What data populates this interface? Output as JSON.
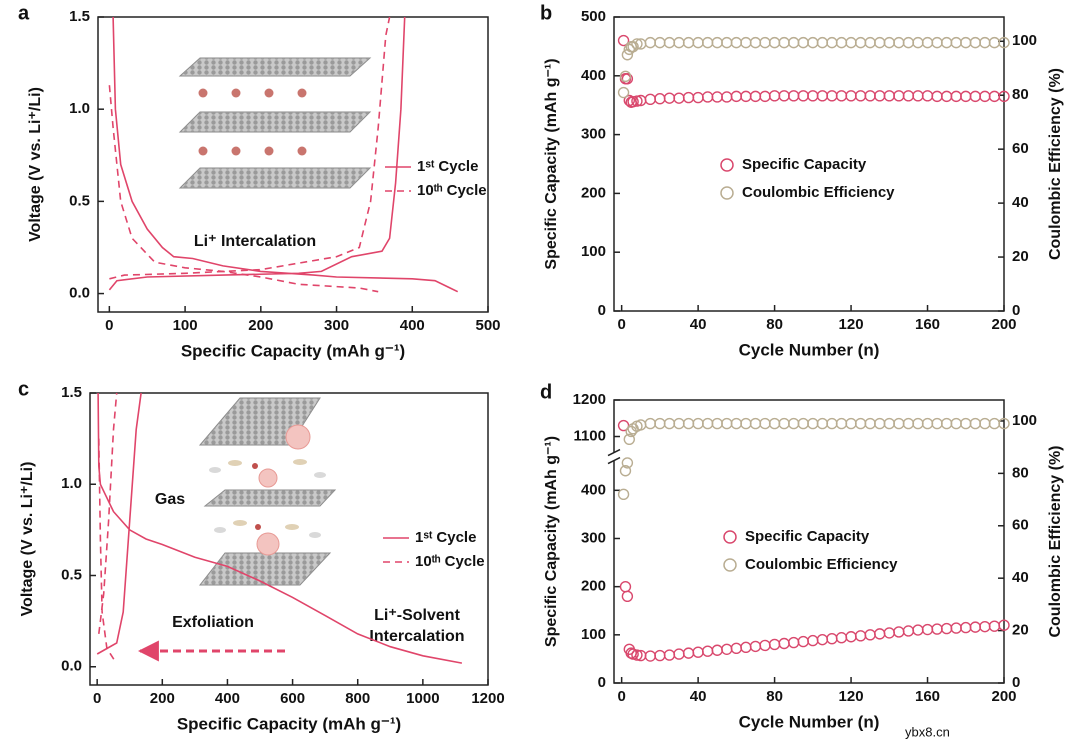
{
  "chart_data": [
    {
      "type": "line",
      "label": "a",
      "xlabel": "Specific Capacity (mAh g⁻¹)",
      "ylabel": "Voltage (V vs. Li⁺/Li)",
      "xlim": [
        -15,
        500
      ],
      "ylim": [
        -0.1,
        1.5
      ],
      "xticks": [
        0,
        100,
        200,
        300,
        400,
        500
      ],
      "yticks": [
        {
          "value": 0,
          "label": "0.0"
        },
        {
          "value": 0.5,
          "label": "0.5"
        },
        {
          "value": 1,
          "label": "1.0"
        },
        {
          "value": 1.5,
          "label": "1.5"
        }
      ],
      "annotations": [
        "Li⁺ Intercalation"
      ],
      "series": [
        {
          "name": "1ˢᵗ Cycle",
          "color": "#e0456a",
          "linestyle": "solid",
          "x": [
            5,
            8,
            15,
            30,
            50,
            70,
            85,
            110,
            150,
            200,
            270,
            300,
            400,
            430,
            450,
            460,
            null,
            0,
            10,
            50,
            150,
            250,
            280,
            320,
            360,
            370,
            378,
            385,
            390
          ],
          "values": [
            1.5,
            1.0,
            0.7,
            0.5,
            0.35,
            0.25,
            0.2,
            0.19,
            0.15,
            0.12,
            0.1,
            0.09,
            0.08,
            0.07,
            0.03,
            0.01,
            null,
            0.02,
            0.07,
            0.09,
            0.1,
            0.11,
            0.12,
            0.2,
            0.23,
            0.3,
            0.6,
            1.0,
            1.5
          ]
        },
        {
          "name": "10ᵗʰ Cycle",
          "color": "#e0456a",
          "linestyle": "dashed",
          "x": [
            0,
            5,
            15,
            30,
            60,
            100,
            150,
            200,
            250,
            330,
            355,
            null,
            0,
            20,
            100,
            200,
            300,
            330,
            345,
            355,
            365,
            370
          ],
          "values": [
            1.13,
            0.9,
            0.5,
            0.3,
            0.17,
            0.14,
            0.12,
            0.09,
            0.05,
            0.03,
            0.01,
            null,
            0.08,
            0.1,
            0.11,
            0.13,
            0.2,
            0.25,
            0.5,
            0.9,
            1.4,
            1.5
          ]
        }
      ]
    },
    {
      "type": "scatter",
      "label": "b",
      "xlabel": "Cycle Number (n)",
      "ylabel": "Specific Capacity (mAh g⁻¹)",
      "y2label": "Coulombic Efficiency (%)",
      "xlim": [
        -4,
        200
      ],
      "ylim": [
        0,
        500
      ],
      "y2lim": [
        0,
        109
      ],
      "xticks": [
        0,
        40,
        80,
        120,
        160,
        200
      ],
      "yticks": [
        0,
        100,
        200,
        300,
        400,
        500
      ],
      "y2ticks": [
        0,
        20,
        40,
        60,
        80,
        100
      ],
      "x": [
        1,
        2,
        3,
        4,
        5,
        6,
        8,
        10,
        15,
        20,
        25,
        30,
        35,
        40,
        45,
        50,
        55,
        60,
        65,
        70,
        75,
        80,
        85,
        90,
        95,
        100,
        105,
        110,
        115,
        120,
        125,
        130,
        135,
        140,
        145,
        150,
        155,
        160,
        165,
        170,
        175,
        180,
        185,
        190,
        195,
        200
      ],
      "series": [
        {
          "name": "Specific Capacity",
          "color": "#d9486d",
          "axis": "y",
          "values": [
            460,
            395,
            395,
            358,
            355,
            356,
            357,
            358,
            360,
            361,
            362,
            362,
            363,
            363,
            364,
            364,
            364,
            365,
            365,
            365,
            365,
            366,
            366,
            366,
            366,
            366,
            366,
            366,
            366,
            366,
            366,
            366,
            366,
            366,
            366,
            366,
            366,
            366,
            365,
            365,
            365,
            365,
            365,
            365,
            365,
            365
          ]
        },
        {
          "name": "Coulombic Efficiency",
          "color": "#b9ad92",
          "axis": "y2",
          "values": [
            81,
            87,
            95,
            97,
            98,
            98,
            99,
            99,
            99.5,
            99.5,
            99.5,
            99.5,
            99.5,
            99.5,
            99.5,
            99.5,
            99.5,
            99.5,
            99.5,
            99.5,
            99.5,
            99.5,
            99.5,
            99.5,
            99.5,
            99.5,
            99.5,
            99.5,
            99.5,
            99.5,
            99.5,
            99.5,
            99.5,
            99.5,
            99.5,
            99.5,
            99.5,
            99.5,
            99.5,
            99.5,
            99.5,
            99.5,
            99.5,
            99.5,
            99.5,
            99.5
          ]
        }
      ]
    },
    {
      "type": "line",
      "label": "c",
      "xlabel": "Specific Capacity (mAh g⁻¹)",
      "ylabel": "Voltage (V vs. Li⁺/Li)",
      "xlim": [
        -22,
        1200
      ],
      "ylim": [
        -0.1,
        1.5
      ],
      "xticks": [
        0,
        200,
        400,
        600,
        800,
        1000,
        1200
      ],
      "yticks": [
        {
          "value": 0,
          "label": "0.0"
        },
        {
          "value": 0.5,
          "label": "0.5"
        },
        {
          "value": 1,
          "label": "1.0"
        },
        {
          "value": 1.5,
          "label": "1.5"
        }
      ],
      "annotations": [
        "Gas",
        "Exfoliation",
        "Li⁺-Solvent",
        "Intercalation"
      ],
      "series": [
        {
          "name": "1ˢᵗ Cycle",
          "color": "#e0456a",
          "linestyle": "solid",
          "x": [
            3,
            5,
            10,
            50,
            100,
            150,
            200,
            300,
            400,
            500,
            600,
            700,
            800,
            900,
            1000,
            1120,
            null,
            0,
            30,
            60,
            80,
            100,
            120,
            135
          ],
          "values": [
            1.5,
            1.1,
            1.0,
            0.85,
            0.75,
            0.7,
            0.67,
            0.6,
            0.55,
            0.47,
            0.38,
            0.28,
            0.18,
            0.11,
            0.06,
            0.02,
            null,
            0.07,
            0.1,
            0.13,
            0.3,
            0.8,
            1.3,
            1.5
          ]
        },
        {
          "name": "10ᵗʰ Cycle",
          "color": "#e0456a",
          "linestyle": "dashed",
          "x": [
            5,
            10,
            15,
            30,
            55,
            null,
            5,
            20,
            35,
            50,
            60
          ],
          "values": [
            1.25,
            0.7,
            0.3,
            0.1,
            0.03,
            null,
            0.18,
            0.4,
            0.8,
            1.3,
            1.5
          ]
        }
      ]
    },
    {
      "type": "scatter",
      "label": "d",
      "xlabel": "Cycle Number (n)",
      "ylabel": "Specific Capacity (mAh g⁻¹)",
      "y2label": "Coulombic Efficiency (%)",
      "xlim": [
        -4,
        200
      ],
      "ylim": [
        0,
        1200
      ],
      "ybreak": [
        470,
        1045
      ],
      "y2lim": [
        0,
        108
      ],
      "xticks": [
        0,
        40,
        80,
        120,
        160,
        200
      ],
      "yticks": [
        0,
        100,
        200,
        300,
        400,
        1100,
        1200
      ],
      "y2ticks": [
        0,
        20,
        40,
        60,
        80,
        100
      ],
      "x": [
        1,
        2,
        3,
        4,
        5,
        6,
        8,
        10,
        15,
        20,
        25,
        30,
        35,
        40,
        45,
        50,
        55,
        60,
        65,
        70,
        75,
        80,
        85,
        90,
        95,
        100,
        105,
        110,
        115,
        120,
        125,
        130,
        135,
        140,
        145,
        150,
        155,
        160,
        165,
        170,
        175,
        180,
        185,
        190,
        195,
        200
      ],
      "series": [
        {
          "name": "Specific Capacity",
          "color": "#d9486d",
          "axis": "y",
          "values": [
            1130,
            200,
            180,
            70,
            62,
            60,
            58,
            57,
            56,
            57,
            58,
            60,
            62,
            64,
            66,
            68,
            70,
            72,
            74,
            76,
            78,
            80,
            82,
            84,
            86,
            88,
            90,
            92,
            94,
            96,
            98,
            100,
            102,
            104,
            106,
            108,
            110,
            111,
            112,
            113,
            114,
            115,
            116,
            117,
            118,
            120
          ]
        },
        {
          "name": "Coulombic Efficiency",
          "color": "#b9ad92",
          "axis": "y2",
          "values": [
            72,
            81,
            84,
            93,
            96,
            97,
            98,
            98.5,
            99,
            99,
            99,
            99,
            99,
            99,
            99,
            99,
            99,
            99,
            99,
            99,
            99,
            99,
            99,
            99,
            99,
            99,
            99,
            99,
            99,
            99,
            99,
            99,
            99,
            99,
            99,
            99,
            99,
            99,
            99,
            99,
            99,
            99,
            99,
            99,
            99,
            99
          ]
        }
      ]
    }
  ],
  "watermark": "ybx8.cn"
}
